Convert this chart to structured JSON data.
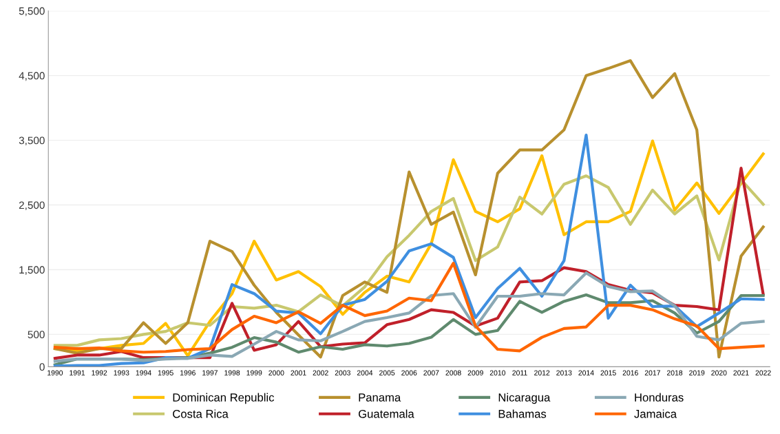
{
  "chart_data": {
    "type": "line",
    "categories": [
      "1990",
      "1991",
      "1992",
      "1993",
      "1994",
      "1995",
      "1996",
      "1997",
      "1998",
      "1999",
      "2000",
      "2001",
      "2002",
      "2003",
      "2004",
      "2005",
      "2006",
      "2007",
      "2008",
      "2009",
      "2010",
      "2011",
      "2012",
      "2013",
      "2014",
      "2015",
      "2016",
      "2017",
      "2018",
      "2019",
      "2020",
      "2021",
      "2022"
    ],
    "ylim": [
      0,
      5500
    ],
    "yticks": [
      {
        "value": 0,
        "label": "0"
      },
      {
        "value": 500,
        "label": "500"
      },
      {
        "value": 1500,
        "label": "1,500"
      },
      {
        "value": 2500,
        "label": "2,500"
      },
      {
        "value": 3500,
        "label": "3,500"
      },
      {
        "value": 4500,
        "label": "4,500"
      },
      {
        "value": 5500,
        "label": "5,500"
      }
    ],
    "grid": "y",
    "legend": "bottom",
    "marker": "none",
    "line_style": "solid",
    "series": [
      {
        "name": "Dominican Republic",
        "color": "#ffc000",
        "values": [
          280,
          250,
          280,
          330,
          360,
          670,
          170,
          700,
          1130,
          1940,
          1340,
          1470,
          1240,
          810,
          1150,
          1400,
          1310,
          1900,
          3200,
          2400,
          2240,
          2440,
          3260,
          2040,
          2240,
          2240,
          2400,
          3490,
          2420,
          2840,
          2370,
          2830,
          3290
        ]
      },
      {
        "name": "Costa Rica",
        "color": "#c8c86e",
        "values": [
          330,
          330,
          415,
          435,
          500,
          545,
          680,
          640,
          930,
          905,
          950,
          850,
          1110,
          940,
          1235,
          1700,
          2030,
          2400,
          2600,
          1640,
          1850,
          2620,
          2360,
          2820,
          2950,
          2770,
          2200,
          2730,
          2360,
          2640,
          1650,
          2890,
          2510
        ]
      },
      {
        "name": "Panama",
        "color": "#b8902e",
        "values": [
          280,
          210,
          280,
          280,
          680,
          360,
          680,
          1940,
          1780,
          1260,
          840,
          490,
          150,
          1100,
          1310,
          1150,
          3010,
          2200,
          2390,
          1420,
          2990,
          3350,
          3350,
          3660,
          4500,
          4610,
          4730,
          4160,
          4530,
          3660,
          150,
          1710,
          2160
        ]
      },
      {
        "name": "Guatemala",
        "color": "#c0202a",
        "values": [
          130,
          180,
          180,
          235,
          140,
          140,
          140,
          140,
          980,
          255,
          340,
          700,
          310,
          350,
          370,
          650,
          730,
          880,
          840,
          630,
          750,
          1310,
          1330,
          1530,
          1470,
          1270,
          1180,
          1140,
          950,
          930,
          880,
          3070,
          1120
        ]
      },
      {
        "name": "Nicaragua",
        "color": "#5f8a6e",
        "values": [
          30,
          120,
          120,
          120,
          110,
          130,
          140,
          210,
          300,
          450,
          380,
          225,
          310,
          270,
          340,
          320,
          360,
          455,
          730,
          500,
          560,
          1010,
          840,
          1010,
          1110,
          990,
          990,
          1020,
          830,
          520,
          700,
          1100,
          1100
        ]
      },
      {
        "name": "Bahamas",
        "color": "#3f8fe0",
        "values": [
          10,
          20,
          20,
          50,
          60,
          140,
          130,
          280,
          1270,
          1130,
          860,
          830,
          510,
          950,
          1040,
          1320,
          1790,
          1900,
          1690,
          760,
          1210,
          1520,
          1090,
          1640,
          3580,
          750,
          1260,
          930,
          940,
          620,
          830,
          1050,
          1040
        ]
      },
      {
        "name": "Honduras",
        "color": "#8aa8b4",
        "values": [
          85,
          120,
          120,
          120,
          95,
          120,
          130,
          180,
          160,
          350,
          545,
          415,
          400,
          545,
          700,
          760,
          830,
          1100,
          1130,
          610,
          1090,
          1090,
          1130,
          1110,
          1450,
          1240,
          1160,
          1170,
          940,
          470,
          415,
          670,
          700
        ]
      },
      {
        "name": "Jamaica",
        "color": "#ff6600",
        "values": [
          300,
          280,
          290,
          245,
          225,
          235,
          265,
          280,
          575,
          780,
          680,
          850,
          670,
          950,
          790,
          860,
          1060,
          1020,
          1600,
          630,
          270,
          245,
          455,
          590,
          615,
          950,
          950,
          880,
          740,
          630,
          280,
          300,
          320
        ]
      }
    ]
  }
}
